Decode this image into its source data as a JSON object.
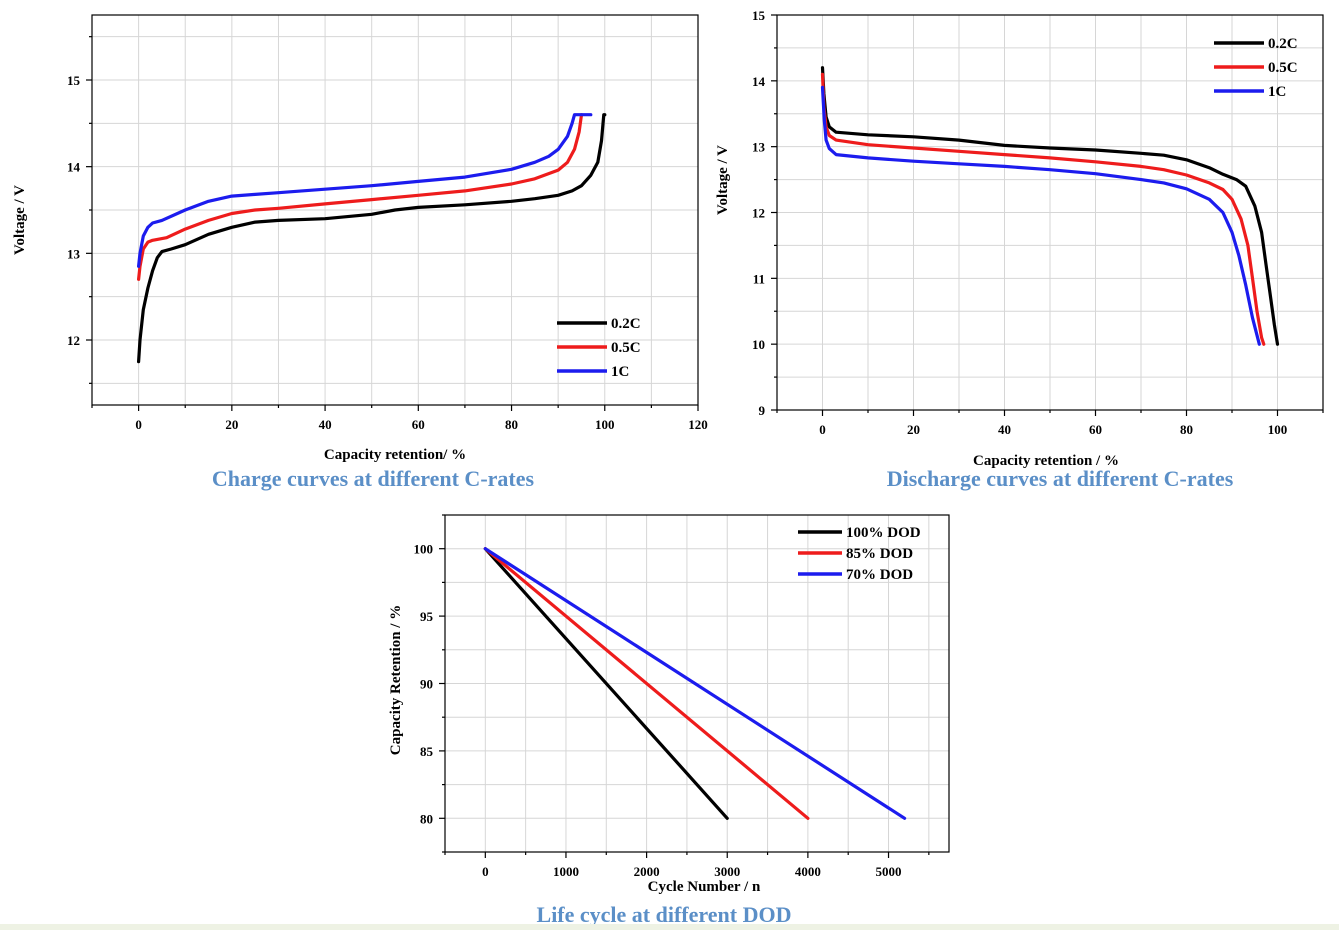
{
  "chart_data": [
    {
      "type": "line",
      "title": "Charge curves at different C-rates",
      "xlabel": "Capacity retention/ %",
      "ylabel": "Voltage / V",
      "xlim": [
        -10,
        120
      ],
      "ylim": [
        11.25,
        15.75
      ],
      "xticks": [
        0,
        20,
        40,
        60,
        80,
        100,
        120
      ],
      "yticks": [
        12,
        13,
        14,
        15
      ],
      "grid": true,
      "legend": "bottom-right",
      "series": [
        {
          "name": "0.2C",
          "color": "#000000",
          "points": [
            [
              0,
              11.75
            ],
            [
              0.3,
              12.0
            ],
            [
              1,
              12.35
            ],
            [
              2,
              12.6
            ],
            [
              3,
              12.8
            ],
            [
              4,
              12.95
            ],
            [
              5,
              13.02
            ],
            [
              7,
              13.05
            ],
            [
              10,
              13.1
            ],
            [
              15,
              13.22
            ],
            [
              20,
              13.3
            ],
            [
              25,
              13.36
            ],
            [
              30,
              13.38
            ],
            [
              40,
              13.4
            ],
            [
              50,
              13.45
            ],
            [
              55,
              13.5
            ],
            [
              60,
              13.53
            ],
            [
              70,
              13.56
            ],
            [
              80,
              13.6
            ],
            [
              85,
              13.63
            ],
            [
              90,
              13.67
            ],
            [
              93,
              13.72
            ],
            [
              95,
              13.78
            ],
            [
              97,
              13.9
            ],
            [
              98.5,
              14.05
            ],
            [
              99.3,
              14.3
            ],
            [
              99.8,
              14.6
            ],
            [
              100,
              14.6
            ]
          ]
        },
        {
          "name": "0.5C",
          "color": "#ee1c1c",
          "points": [
            [
              0,
              12.7
            ],
            [
              0.3,
              12.85
            ],
            [
              1,
              13.05
            ],
            [
              2,
              13.13
            ],
            [
              3,
              13.15
            ],
            [
              6,
              13.18
            ],
            [
              10,
              13.28
            ],
            [
              15,
              13.38
            ],
            [
              20,
              13.46
            ],
            [
              25,
              13.5
            ],
            [
              30,
              13.52
            ],
            [
              40,
              13.57
            ],
            [
              50,
              13.62
            ],
            [
              60,
              13.67
            ],
            [
              70,
              13.72
            ],
            [
              80,
              13.8
            ],
            [
              85,
              13.86
            ],
            [
              90,
              13.96
            ],
            [
              92,
              14.05
            ],
            [
              93.5,
              14.2
            ],
            [
              94.5,
              14.4
            ],
            [
              95,
              14.6
            ]
          ]
        },
        {
          "name": "1C",
          "color": "#1c1cee",
          "points": [
            [
              0,
              12.85
            ],
            [
              0.3,
              13.0
            ],
            [
              1,
              13.2
            ],
            [
              2,
              13.3
            ],
            [
              3,
              13.35
            ],
            [
              5,
              13.38
            ],
            [
              10,
              13.5
            ],
            [
              15,
              13.6
            ],
            [
              20,
              13.66
            ],
            [
              25,
              13.68
            ],
            [
              30,
              13.7
            ],
            [
              40,
              13.74
            ],
            [
              50,
              13.78
            ],
            [
              60,
              13.83
            ],
            [
              70,
              13.88
            ],
            [
              80,
              13.97
            ],
            [
              85,
              14.05
            ],
            [
              88,
              14.12
            ],
            [
              90,
              14.2
            ],
            [
              92,
              14.35
            ],
            [
              93,
              14.5
            ],
            [
              93.5,
              14.6
            ],
            [
              97,
              14.6
            ]
          ]
        }
      ]
    },
    {
      "type": "line",
      "title": "Discharge curves at different C-rates",
      "xlabel": "Capacity retention / %",
      "ylabel": "Voltage / V",
      "xlim": [
        -10,
        110
      ],
      "ylim": [
        9,
        15
      ],
      "xticks": [
        0,
        20,
        40,
        60,
        80,
        100
      ],
      "yticks": [
        9,
        10,
        11,
        12,
        13,
        14,
        15
      ],
      "grid": true,
      "legend": "top-right",
      "series": [
        {
          "name": "0.2C",
          "color": "#000000",
          "points": [
            [
              0,
              14.2
            ],
            [
              0.3,
              13.8
            ],
            [
              0.8,
              13.45
            ],
            [
              1.5,
              13.3
            ],
            [
              3,
              13.22
            ],
            [
              10,
              13.18
            ],
            [
              20,
              13.15
            ],
            [
              30,
              13.1
            ],
            [
              40,
              13.02
            ],
            [
              50,
              12.98
            ],
            [
              60,
              12.95
            ],
            [
              70,
              12.9
            ],
            [
              75,
              12.87
            ],
            [
              80,
              12.8
            ],
            [
              85,
              12.68
            ],
            [
              88,
              12.58
            ],
            [
              91,
              12.5
            ],
            [
              93,
              12.4
            ],
            [
              95,
              12.1
            ],
            [
              96.5,
              11.7
            ],
            [
              97.5,
              11.2
            ],
            [
              98.5,
              10.7
            ],
            [
              99.3,
              10.3
            ],
            [
              100,
              10.0
            ]
          ]
        },
        {
          "name": "0.5C",
          "color": "#ee1c1c",
          "points": [
            [
              0,
              14.1
            ],
            [
              0.3,
              13.6
            ],
            [
              0.8,
              13.3
            ],
            [
              1.5,
              13.17
            ],
            [
              3,
              13.1
            ],
            [
              10,
              13.03
            ],
            [
              20,
              12.98
            ],
            [
              30,
              12.93
            ],
            [
              40,
              12.88
            ],
            [
              50,
              12.83
            ],
            [
              60,
              12.77
            ],
            [
              70,
              12.7
            ],
            [
              75,
              12.65
            ],
            [
              80,
              12.57
            ],
            [
              85,
              12.45
            ],
            [
              88,
              12.35
            ],
            [
              90,
              12.2
            ],
            [
              92,
              11.9
            ],
            [
              93.5,
              11.5
            ],
            [
              94.5,
              11.0
            ],
            [
              95.5,
              10.5
            ],
            [
              96.5,
              10.1
            ],
            [
              97,
              10.0
            ]
          ]
        },
        {
          "name": "1C",
          "color": "#1c1cee",
          "points": [
            [
              0,
              13.9
            ],
            [
              0.4,
              13.4
            ],
            [
              0.8,
              13.1
            ],
            [
              1.5,
              12.97
            ],
            [
              3,
              12.88
            ],
            [
              10,
              12.83
            ],
            [
              20,
              12.78
            ],
            [
              30,
              12.74
            ],
            [
              40,
              12.7
            ],
            [
              50,
              12.65
            ],
            [
              60,
              12.59
            ],
            [
              70,
              12.5
            ],
            [
              75,
              12.45
            ],
            [
              80,
              12.36
            ],
            [
              85,
              12.2
            ],
            [
              88,
              12.0
            ],
            [
              90,
              11.7
            ],
            [
              91.5,
              11.35
            ],
            [
              93,
              10.9
            ],
            [
              94.5,
              10.4
            ],
            [
              96,
              10.0
            ]
          ]
        }
      ]
    },
    {
      "type": "line",
      "title": "Life cycle at different DOD",
      "xlabel": "Cycle Number / n",
      "ylabel": "Capacity Retention / %",
      "xlim": [
        -500,
        5750
      ],
      "ylim": [
        77.5,
        102.5
      ],
      "xticks": [
        0,
        1000,
        2000,
        3000,
        4000,
        5000
      ],
      "yticks": [
        80,
        85,
        90,
        95,
        100
      ],
      "grid": true,
      "legend": "top-right",
      "series": [
        {
          "name": "100% DOD",
          "color": "#000000",
          "points": [
            [
              0,
              100
            ],
            [
              3000,
              80
            ]
          ]
        },
        {
          "name": "85% DOD",
          "color": "#ee1c1c",
          "points": [
            [
              0,
              100
            ],
            [
              4000,
              80
            ]
          ]
        },
        {
          "name": "70% DOD",
          "color": "#1c1cee",
          "points": [
            [
              0,
              100
            ],
            [
              5200,
              80
            ]
          ]
        }
      ]
    }
  ]
}
